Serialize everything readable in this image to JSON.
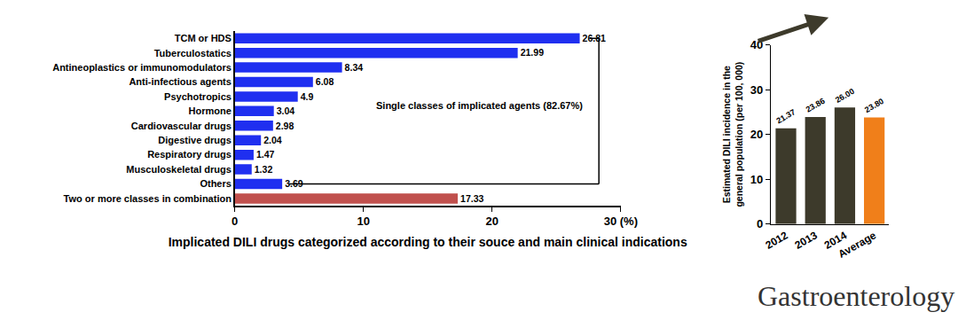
{
  "chart_data": [
    {
      "type": "bar",
      "orientation": "horizontal",
      "x_label": "Implicated DILI drugs categorized according to their souce and main clinical indications",
      "categories": [
        "TCM or HDS",
        "Tuberculostatics",
        "Antineoplastics or immunomodulators",
        "Anti-infectious agents",
        "Psychotropics",
        "Hormone",
        "Cardiovascular drugs",
        "Digestive drugs",
        "Respiratory drugs",
        "Musculoskeletal drugs",
        "Others",
        "Two or more classes in combination"
      ],
      "values": [
        26.81,
        21.99,
        8.34,
        6.08,
        4.9,
        3.04,
        2.98,
        2.04,
        1.47,
        1.32,
        3.69,
        17.33
      ],
      "colors": [
        "#1f2ff0",
        "#1f2ff0",
        "#1f2ff0",
        "#1f2ff0",
        "#1f2ff0",
        "#1f2ff0",
        "#1f2ff0",
        "#1f2ff0",
        "#1f2ff0",
        "#1f2ff0",
        "#1f2ff0",
        "#c0504d"
      ],
      "xlim": [
        0,
        30
      ],
      "xticks": [
        0,
        10,
        20,
        {
          "value": 30,
          "label": "30 (%)"
        }
      ],
      "data_labels": true,
      "grid": false,
      "annotations": [
        "Single classes of implicated agents (82.67%)"
      ]
    },
    {
      "type": "bar",
      "y_label": "Estimated DILI incidence in the general population (per 100, 000)",
      "categories": [
        "2012",
        "2013",
        "2014",
        "Average"
      ],
      "values": [
        21.37,
        23.86,
        26.0,
        23.8
      ],
      "value_labels": [
        "21.37",
        "23.86",
        "26.00",
        "23.80"
      ],
      "colors": [
        "#3d3a2b",
        "#3d3a2b",
        "#3d3a2b",
        "#f07f1a"
      ],
      "ylim": [
        0,
        40
      ],
      "yticks": [
        0,
        10,
        20,
        30,
        40
      ],
      "data_labels": true,
      "grid": false
    }
  ],
  "brand": "Gastroenterology"
}
